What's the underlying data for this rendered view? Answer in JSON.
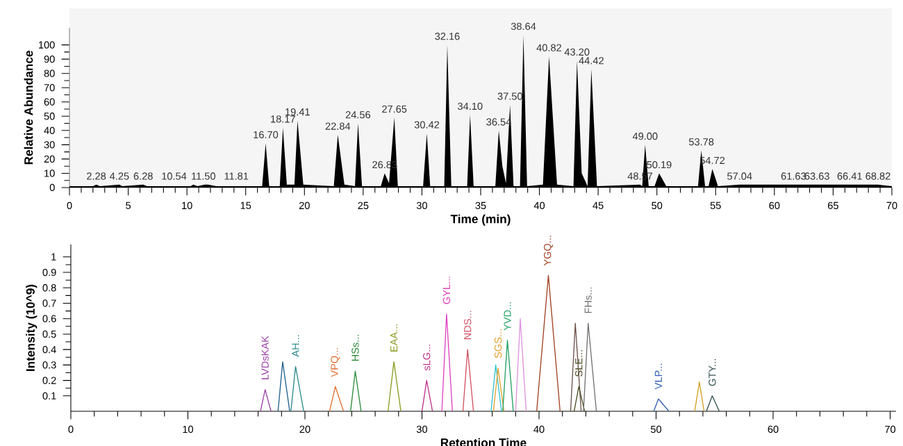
{
  "chart_data": [
    {
      "type": "area",
      "color": "#000000",
      "xlabel": "Time (min)",
      "ylabel": "Relative Abundance",
      "xlim": [
        0,
        70
      ],
      "ylim": [
        0,
        112
      ],
      "xticks": [
        0,
        5,
        10,
        15,
        20,
        25,
        30,
        35,
        40,
        45,
        50,
        55,
        60,
        65,
        70
      ],
      "yticks": [
        0,
        10,
        20,
        30,
        40,
        50,
        60,
        70,
        80,
        90,
        100
      ],
      "x": [
        0,
        2.0,
        2.28,
        2.6,
        4.25,
        4.5,
        6.28,
        6.6,
        10.3,
        10.54,
        10.9,
        11.5,
        11.81,
        12.5,
        16.4,
        16.7,
        17.0,
        17.9,
        18.17,
        18.5,
        19.15,
        19.41,
        19.9,
        22.5,
        22.84,
        23.4,
        24.3,
        24.56,
        24.9,
        26.5,
        26.83,
        27.2,
        27.65,
        27.95,
        30.1,
        30.42,
        30.7,
        31.9,
        32.16,
        32.5,
        33.85,
        34.1,
        34.4,
        36.25,
        36.54,
        36.85,
        37.15,
        37.5,
        37.8,
        38.35,
        38.64,
        38.95,
        40.3,
        40.82,
        41.5,
        42.9,
        43.2,
        43.6,
        44.1,
        44.42,
        44.9,
        48.57,
        48.75,
        49.0,
        49.3,
        49.8,
        50.19,
        50.8,
        53.5,
        53.78,
        54.1,
        54.4,
        54.72,
        55.2,
        57.04,
        61.63,
        63.63,
        66.41,
        68.82,
        70
      ],
      "values": [
        1,
        1,
        2,
        1,
        2,
        1,
        2,
        1,
        1,
        2,
        1,
        2,
        2,
        1,
        1,
        31,
        1,
        1,
        42,
        2,
        2,
        47,
        2,
        1,
        37,
        2,
        1,
        45,
        1,
        1,
        10,
        3,
        49,
        1,
        1,
        38,
        1,
        1,
        100,
        1,
        1,
        51,
        1,
        1,
        40,
        15,
        3,
        58,
        1,
        1,
        107,
        1,
        2,
        92,
        2,
        1,
        89,
        10,
        1,
        83,
        1,
        2,
        1,
        30,
        1,
        1,
        10,
        1,
        1,
        26,
        1,
        1,
        13,
        1,
        2,
        2,
        2,
        2,
        2,
        1
      ],
      "annotations": [
        {
          "text": "2.28",
          "x": 2.28,
          "y": 2
        },
        {
          "text": "4.25",
          "x": 4.25,
          "y": 2
        },
        {
          "text": "6.28",
          "x": 6.28,
          "y": 2
        },
        {
          "text": "10.54",
          "x": 8.9,
          "y": 2
        },
        {
          "text": "11.50",
          "x": 11.4,
          "y": 2
        },
        {
          "text": "11.81",
          "x": 14.2,
          "y": 2
        },
        {
          "text": "16.70",
          "x": 16.7,
          "y": 31
        },
        {
          "text": "18.17",
          "x": 18.17,
          "y": 42
        },
        {
          "text": "19.41",
          "x": 19.41,
          "y": 47
        },
        {
          "text": "22.84",
          "x": 22.84,
          "y": 37
        },
        {
          "text": "24.56",
          "x": 24.56,
          "y": 45
        },
        {
          "text": "26.83",
          "x": 26.83,
          "y": 10
        },
        {
          "text": "27.65",
          "x": 27.65,
          "y": 49
        },
        {
          "text": "30.42",
          "x": 30.42,
          "y": 38
        },
        {
          "text": "32.16",
          "x": 32.16,
          "y": 100
        },
        {
          "text": "34.10",
          "x": 34.1,
          "y": 51
        },
        {
          "text": "36.54",
          "x": 36.54,
          "y": 40
        },
        {
          "text": "37.50",
          "x": 37.5,
          "y": 58
        },
        {
          "text": "38.64",
          "x": 38.64,
          "y": 107
        },
        {
          "text": "40.82",
          "x": 40.82,
          "y": 92
        },
        {
          "text": "43.20",
          "x": 43.2,
          "y": 89
        },
        {
          "text": "44.42",
          "x": 44.42,
          "y": 83
        },
        {
          "text": "48.57",
          "x": 48.57,
          "y": 2
        },
        {
          "text": "49.00",
          "x": 49.0,
          "y": 30
        },
        {
          "text": "50.19",
          "x": 50.19,
          "y": 10
        },
        {
          "text": "53.78",
          "x": 53.78,
          "y": 26
        },
        {
          "text": "54.72",
          "x": 54.72,
          "y": 13
        },
        {
          "text": "57.04",
          "x": 57.04,
          "y": 2
        },
        {
          "text": "61.63",
          "x": 61.63,
          "y": 2
        },
        {
          "text": "63.63",
          "x": 63.63,
          "y": 2
        },
        {
          "text": "66.41",
          "x": 66.41,
          "y": 2
        },
        {
          "text": "68.82",
          "x": 68.82,
          "y": 2
        }
      ]
    },
    {
      "type": "line",
      "xlabel": "Retention Time",
      "ylabel": "Intensity (10^9)",
      "xlim": [
        0,
        70.5
      ],
      "ylim": [
        0,
        1.08
      ],
      "xticks": [
        0,
        10,
        20,
        30,
        40,
        50,
        60,
        70
      ],
      "yticks": [
        0.1,
        0.2,
        0.3,
        0.4,
        0.5,
        0.6,
        0.7,
        0.8,
        0.9,
        1
      ],
      "series": [
        {
          "name": "LVDsKAK",
          "color": "#9b3fa8",
          "x": [
            16.2,
            16.6,
            17.1
          ],
          "values": [
            0,
            0.14,
            0
          ]
        },
        {
          "color": "#1f5f8b",
          "x": [
            17.7,
            18.1,
            18.7
          ],
          "values": [
            0,
            0.32,
            0
          ]
        },
        {
          "name": "AH...",
          "color": "#2a8a8a",
          "x": [
            18.8,
            19.2,
            19.9
          ],
          "values": [
            0,
            0.29,
            0
          ]
        },
        {
          "name": "VPQ...",
          "color": "#e07030",
          "x": [
            22.1,
            22.6,
            23.3
          ],
          "values": [
            0,
            0.16,
            0
          ]
        },
        {
          "name": "HSs...",
          "color": "#2a8a3a",
          "x": [
            23.9,
            24.3,
            24.8
          ],
          "values": [
            0,
            0.26,
            0
          ]
        },
        {
          "name": "EAA...",
          "color": "#8a9a20",
          "x": [
            27.1,
            27.6,
            28.2
          ],
          "values": [
            0,
            0.32,
            0
          ]
        },
        {
          "name": "sLG...",
          "color": "#c0308a",
          "x": [
            30.0,
            30.4,
            30.9
          ],
          "values": [
            0,
            0.2,
            0
          ]
        },
        {
          "name": "GYL...",
          "color": "#e040c0",
          "x": [
            31.7,
            32.1,
            32.6
          ],
          "values": [
            0,
            0.63,
            0
          ]
        },
        {
          "name": "NDS...",
          "color": "#d05060",
          "x": [
            33.5,
            33.9,
            34.4
          ],
          "values": [
            0,
            0.4,
            0
          ]
        },
        {
          "color": "#30c0d0",
          "x": [
            35.9,
            36.3,
            36.8
          ],
          "values": [
            0,
            0.3,
            0
          ]
        },
        {
          "name": "SGS...",
          "color": "#e0a030",
          "x": [
            36.1,
            36.5,
            37.0
          ],
          "values": [
            0,
            0.28,
            0
          ]
        },
        {
          "name": "YVD...",
          "color": "#20a060",
          "x": [
            36.9,
            37.3,
            37.8
          ],
          "values": [
            0,
            0.46,
            0
          ]
        },
        {
          "color": "#e090e0",
          "x": [
            38.0,
            38.4,
            38.9
          ],
          "values": [
            0,
            0.6,
            0
          ]
        },
        {
          "name": "YGQ...",
          "color": "#a04020",
          "x": [
            39.8,
            40.8,
            41.8
          ],
          "values": [
            0,
            0.88,
            0
          ]
        },
        {
          "color": "#6a5048",
          "x": [
            42.7,
            43.1,
            43.6
          ],
          "values": [
            0,
            0.57,
            0
          ]
        },
        {
          "name": "SLE...",
          "color": "#4a4a20",
          "x": [
            43.0,
            43.4,
            43.9
          ],
          "values": [
            0,
            0.16,
            0
          ]
        },
        {
          "name": "FHs...",
          "color": "#707070",
          "x": [
            43.8,
            44.2,
            44.9
          ],
          "values": [
            0,
            0.57,
            0
          ]
        },
        {
          "name": "VLP...",
          "color": "#3060b0",
          "x": [
            49.8,
            50.2,
            51.1
          ],
          "values": [
            0,
            0.08,
            0
          ]
        },
        {
          "color": "#d0a020",
          "x": [
            53.3,
            53.7,
            54.1
          ],
          "values": [
            0,
            0.19,
            0
          ]
        },
        {
          "name": "GTY...",
          "color": "#305050",
          "x": [
            54.3,
            54.8,
            55.4
          ],
          "values": [
            0,
            0.1,
            0
          ]
        }
      ]
    }
  ]
}
